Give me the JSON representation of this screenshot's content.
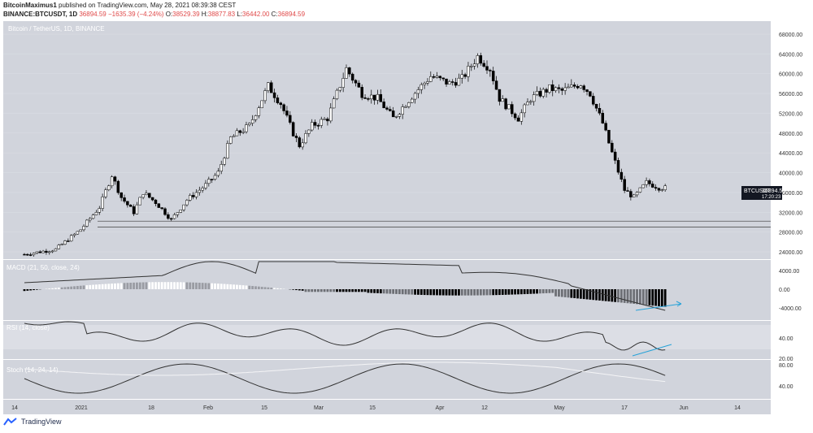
{
  "header": {
    "publisher": "BitcoinMaximus1",
    "published_text": "published on TradingView.com, May 28, 2021 08:39:38 CEST",
    "symbol": "BINANCE:BTCUSDT, 1D",
    "last": "36894.59",
    "change": "−1635.39 (−4.24%)",
    "o_label": "O:",
    "o_value": "38529.39",
    "h_label": "H:",
    "h_value": "38877.83",
    "l_label": "L:",
    "l_value": "36442.00",
    "c_label": "C:",
    "c_value": "36894.59"
  },
  "chart_data": {
    "type": "candlestick",
    "title": "Bitcoin / TetherUS, 1D, BINANCE",
    "price_axis": [
      "68000.00",
      "64000.00",
      "60000.00",
      "56000.00",
      "52000.00",
      "48000.00",
      "44000.00",
      "40000.00",
      "36000.00",
      "32000.00",
      "28000.00",
      "24000.00"
    ],
    "price_label": {
      "symbol": "BTCUSDT",
      "price": "36894.59",
      "countdown": "17:20:23"
    },
    "horizontal_lines": [
      30200,
      29000
    ],
    "macd": {
      "label": "MACD (21, 50, close, 24)",
      "axis": [
        "4000.00",
        "0.00",
        "-4000.00"
      ]
    },
    "rsi": {
      "label": "RSI (14, close)",
      "axis": [
        "40.00",
        "20.00"
      ]
    },
    "stoch": {
      "label": "Stoch (14, 24, 14)",
      "axis": [
        "80.00",
        "40.00"
      ]
    },
    "x_labels": [
      "14",
      "2021",
      "18",
      "Feb",
      "15",
      "Mar",
      "15",
      "Apr",
      "12",
      "May",
      "17",
      "Jun",
      "14"
    ],
    "ylim": [
      22000,
      70000
    ],
    "colors": {
      "bg": "#d1d4dc",
      "up": "#ffffff",
      "down": "#000000",
      "grid": "#e4e6ec",
      "trend": "#26a2d8"
    }
  },
  "footer": {
    "brand": "TradingView"
  }
}
